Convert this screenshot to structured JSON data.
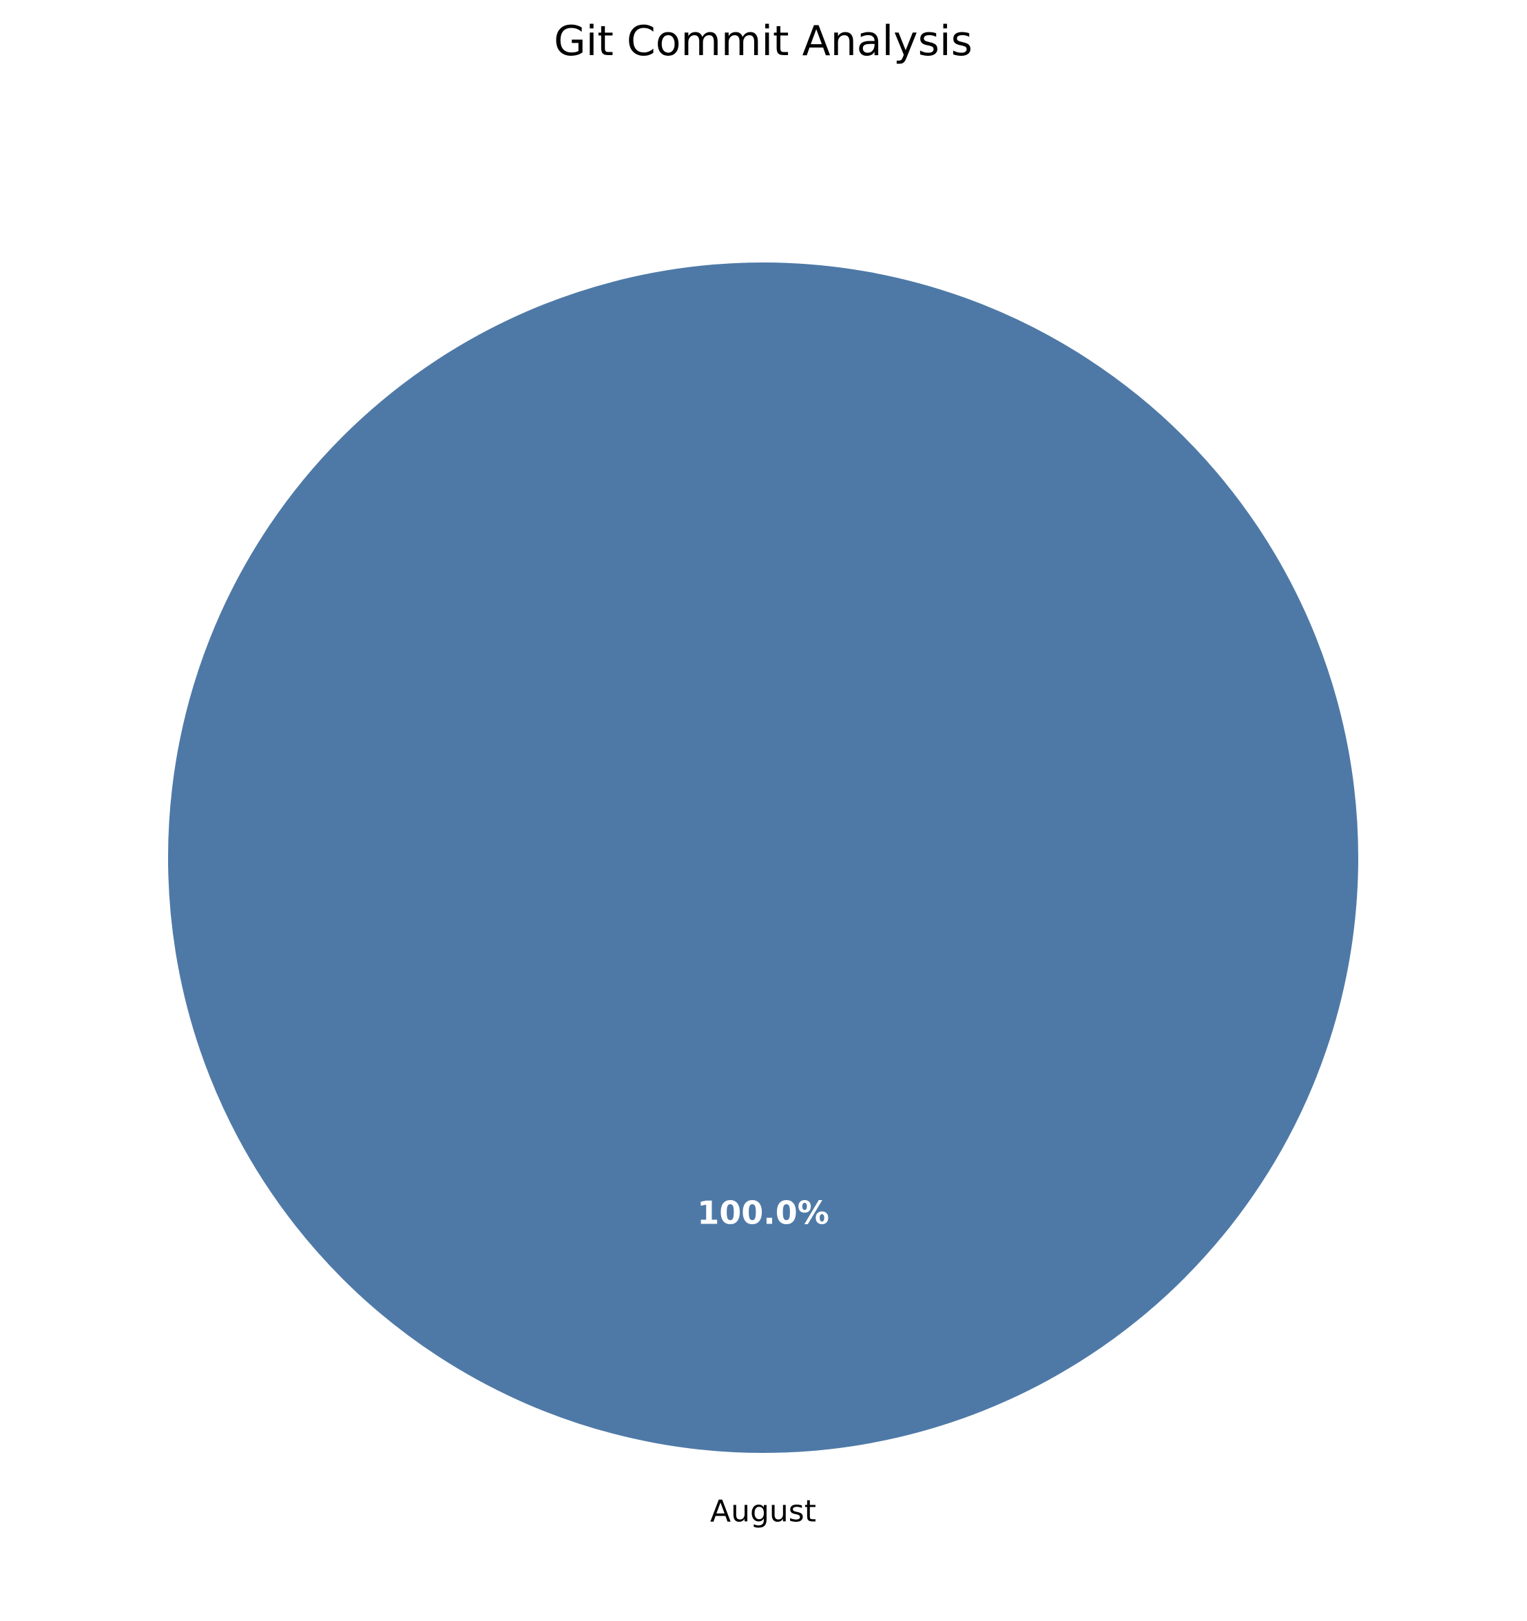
{
  "chart_data": {
    "type": "pie",
    "title": "Git Commit Analysis",
    "labels": [
      "August"
    ],
    "values": [
      100
    ],
    "percent_labels": [
      "100.0%"
    ],
    "colors": [
      "#4e79a7"
    ],
    "percent_label_color": "#ffffff",
    "edge_color": "#ffffff",
    "start_angle_deg": 90,
    "legend": "none"
  }
}
